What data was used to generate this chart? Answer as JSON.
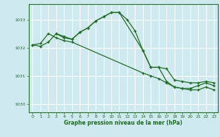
{
  "background_color": "#cfe9f0",
  "grid_color": "#ffffff",
  "line_color": "#1a6b1a",
  "marker_color": "#1a6b1a",
  "xlabel": "Graphe pression niveau de la mer (hPa)",
  "xlim": [
    -0.5,
    23.5
  ],
  "ylim": [
    1029.7,
    1033.55
  ],
  "yticks": [
    1030,
    1031,
    1032,
    1033
  ],
  "xticks": [
    0,
    1,
    2,
    3,
    4,
    5,
    6,
    7,
    8,
    9,
    10,
    11,
    12,
    13,
    14,
    15,
    16,
    17,
    18,
    19,
    20,
    21,
    22,
    23
  ],
  "series1_x": [
    0,
    1,
    2,
    3,
    4,
    5,
    6,
    7,
    8,
    9,
    10,
    11,
    12,
    13,
    14,
    15,
    16,
    17,
    18,
    19,
    20,
    21,
    22,
    23
  ],
  "series1_y": [
    1032.1,
    1032.05,
    1032.2,
    1032.5,
    1032.4,
    1032.3,
    1032.55,
    1032.7,
    1032.95,
    1033.1,
    1033.25,
    1033.25,
    1033.0,
    1032.6,
    1031.9,
    1031.3,
    1031.3,
    1031.25,
    1030.85,
    1030.8,
    1030.75,
    1030.75,
    1030.8,
    1030.75
  ],
  "series2_x": [
    0,
    1,
    2,
    3,
    4,
    5,
    14,
    15,
    16,
    17,
    18,
    19,
    20,
    21,
    22,
    23
  ],
  "series2_y": [
    1032.1,
    1032.15,
    1032.5,
    1032.35,
    1032.25,
    1032.2,
    1031.1,
    1031.0,
    1030.9,
    1030.75,
    1030.6,
    1030.55,
    1030.5,
    1030.5,
    1030.6,
    1030.5
  ],
  "series3_x": [
    3,
    4,
    5,
    6,
    7,
    8,
    9,
    10,
    11,
    14,
    15,
    16,
    17,
    18,
    19,
    20,
    21,
    22,
    23
  ],
  "series3_y": [
    1032.5,
    1032.35,
    1032.3,
    1032.55,
    1032.7,
    1032.95,
    1033.1,
    1033.25,
    1033.25,
    1031.9,
    1031.3,
    1031.3,
    1030.8,
    1030.6,
    1030.55,
    1030.55,
    1030.65,
    1030.75,
    1030.65
  ]
}
